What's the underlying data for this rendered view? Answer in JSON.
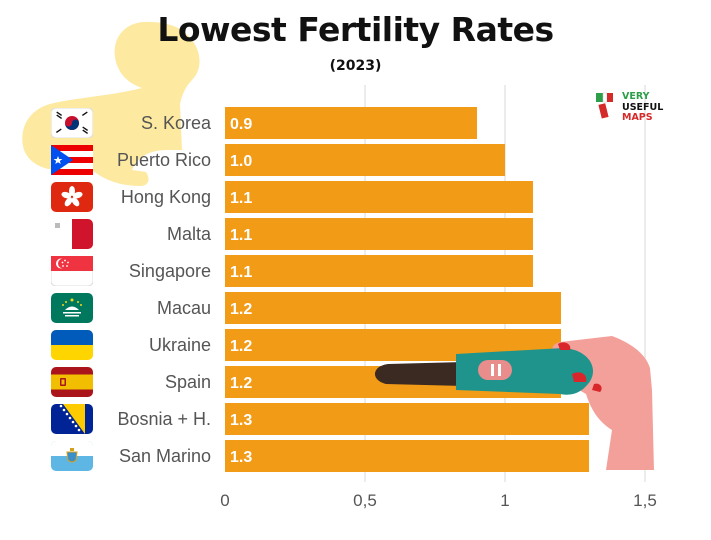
{
  "header": {
    "title": "Lowest Fertility Rates",
    "subtitle": "(2023)"
  },
  "brand": {
    "line1": "VERY",
    "line2": "USEFUL",
    "line3": "MAPS",
    "colors": {
      "line1": "#2e9e4a",
      "line2": "#111111",
      "line3": "#d42a2a"
    }
  },
  "colors": {
    "bar": "#f29b16",
    "bar_label": "#ffffff",
    "category_label": "#555555",
    "axis_tick_label": "#555555",
    "gridline": "#d9d9d9",
    "baby_silhouette": "#fde9a0",
    "test_handle": "#3a2a22",
    "test_body": "#1e948c",
    "test_window": "#e88c8c",
    "hand": "#f4a09a",
    "nails": "#d8262a"
  },
  "chart_data": {
    "type": "bar",
    "orientation": "horizontal",
    "title": "Lowest Fertility Rates",
    "subtitle": "(2023)",
    "xlabel": "",
    "ylabel": "",
    "xlim": [
      0,
      1.5
    ],
    "grid": true,
    "categories": [
      "S. Korea",
      "Puerto Rico",
      "Hong Kong",
      "Malta",
      "Singapore",
      "Macau",
      "Ukraine",
      "Spain",
      "Bosnia + H.",
      "San Marino"
    ],
    "values": [
      0.9,
      1.0,
      1.1,
      1.1,
      1.1,
      1.2,
      1.2,
      1.2,
      1.3,
      1.3
    ],
    "value_labels": [
      "0.9",
      "1.0",
      "1.1",
      "1.1",
      "1.1",
      "1.2",
      "1.2",
      "1.2",
      "1.3",
      "1.3"
    ],
    "ticks": [
      0,
      0.5,
      1,
      1.5
    ],
    "tick_labels": [
      "0",
      "0,5",
      "1",
      "1,5"
    ],
    "flags": [
      "south-korea-flag",
      "puerto-rico-flag",
      "hong-kong-flag",
      "malta-flag",
      "singapore-flag",
      "macau-flag",
      "ukraine-flag",
      "spain-flag",
      "bosnia-flag",
      "san-marino-flag"
    ]
  }
}
